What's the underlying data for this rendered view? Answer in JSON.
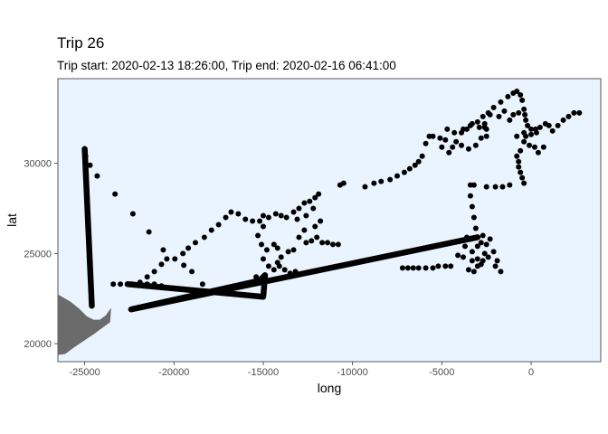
{
  "chart_data": {
    "type": "scatter",
    "title": "Trip 26",
    "subtitle": "Trip start: 2020-02-13 18:26:00, Trip end: 2020-02-16 06:41:00",
    "xlabel": "long",
    "ylabel": "lat",
    "xlim": [
      -26500,
      3900
    ],
    "ylim": [
      19000,
      34700
    ],
    "x_ticks": [
      -25000,
      -20000,
      -15000,
      -10000,
      -5000,
      0
    ],
    "x_tick_labels": [
      "-25000",
      "-20000",
      "-15000",
      "-10000",
      "-5000",
      "0"
    ],
    "y_ticks": [
      20000,
      25000,
      30000
    ],
    "y_tick_labels": [
      "20000",
      "25000",
      "30000"
    ],
    "grid": false,
    "panel_background": "#eaf4ff",
    "land_color": "#6b6b6b",
    "point_color": "#000000",
    "land_outline": [
      [
        -26500,
        22700
      ],
      [
        -25800,
        22300
      ],
      [
        -25300,
        21900
      ],
      [
        -24900,
        21500
      ],
      [
        -24500,
        21300
      ],
      [
        -24150,
        21300
      ],
      [
        -23800,
        21550
      ],
      [
        -23550,
        21900
      ],
      [
        -23600,
        21200
      ],
      [
        -23950,
        20950
      ],
      [
        -24500,
        20550
      ],
      [
        -25100,
        20150
      ],
      [
        -25700,
        19750
      ],
      [
        -26100,
        19450
      ],
      [
        -26500,
        19400
      ]
    ],
    "dense_tracks": [
      [
        [
          -25000,
          30800
        ],
        [
          -24600,
          22100
        ]
      ],
      [
        [
          -22600,
          23300
        ],
        [
          -15000,
          22600
        ],
        [
          -14900,
          23800
        ],
        [
          -15200,
          23500
        ],
        [
          -22400,
          21900
        ],
        [
          -3000,
          25900
        ]
      ]
    ],
    "points": [
      [
        -24950,
        30400
      ],
      [
        -24700,
        29900
      ],
      [
        -24300,
        29300
      ],
      [
        -23300,
        28300
      ],
      [
        -22300,
        27200
      ],
      [
        -21400,
        26200
      ],
      [
        -20600,
        25200
      ],
      [
        -19950,
        24700
      ],
      [
        -19450,
        24350
      ],
      [
        -19000,
        24000
      ],
      [
        -20400,
        24700
      ],
      [
        -20700,
        24400
      ],
      [
        -21100,
        24000
      ],
      [
        -21500,
        23700
      ],
      [
        -21900,
        23400
      ],
      [
        -22350,
        23300
      ],
      [
        -19500,
        25000
      ],
      [
        -19200,
        25300
      ],
      [
        -18800,
        25600
      ],
      [
        -18300,
        25900
      ],
      [
        -17900,
        26300
      ],
      [
        -17500,
        26600
      ],
      [
        -17100,
        27000
      ],
      [
        -16800,
        27300
      ],
      [
        -16400,
        27200
      ],
      [
        -16000,
        26900
      ],
      [
        -15600,
        26800
      ],
      [
        -15200,
        26800
      ],
      [
        -15000,
        26500
      ],
      [
        -15300,
        26000
      ],
      [
        -15100,
        25500
      ],
      [
        -14800,
        25200
      ],
      [
        -15000,
        27100
      ],
      [
        -14700,
        27000
      ],
      [
        -14300,
        27200
      ],
      [
        -14000,
        27100
      ],
      [
        -13700,
        27000
      ],
      [
        -13300,
        27300
      ],
      [
        -13000,
        27500
      ],
      [
        -12700,
        27800
      ],
      [
        -12400,
        27900
      ],
      [
        -12100,
        28100
      ],
      [
        -11900,
        28300
      ],
      [
        -12200,
        27500
      ],
      [
        -12600,
        27100
      ],
      [
        -13100,
        26900
      ],
      [
        -14400,
        25500
      ],
      [
        -14200,
        25300
      ],
      [
        -14000,
        24800
      ],
      [
        -14100,
        24300
      ],
      [
        -14400,
        24100
      ],
      [
        -13800,
        24100
      ],
      [
        -13500,
        23900
      ],
      [
        -13200,
        24000
      ],
      [
        -13600,
        25100
      ],
      [
        -13300,
        25200
      ],
      [
        -13000,
        25900
      ],
      [
        -12700,
        26300
      ],
      [
        -12600,
        25600
      ],
      [
        -12300,
        25700
      ],
      [
        -12000,
        25900
      ],
      [
        -11700,
        25600
      ],
      [
        -11400,
        25600
      ],
      [
        -11100,
        25500
      ],
      [
        -10800,
        25500
      ],
      [
        -14700,
        24300
      ],
      [
        -15400,
        23700
      ],
      [
        -15000,
        24700
      ],
      [
        -14200,
        24500
      ],
      [
        -12100,
        26500
      ],
      [
        -11800,
        26800
      ],
      [
        -10700,
        28800
      ],
      [
        -10500,
        28900
      ],
      [
        -9300,
        28700
      ],
      [
        -8800,
        28900
      ],
      [
        -8400,
        29000
      ],
      [
        -7900,
        29100
      ],
      [
        -7500,
        29300
      ],
      [
        -7100,
        29500
      ],
      [
        -6800,
        29700
      ],
      [
        -6500,
        29900
      ],
      [
        -6300,
        30100
      ],
      [
        -6100,
        30400
      ],
      [
        -5900,
        31100
      ],
      [
        -5700,
        31500
      ],
      [
        -5500,
        31500
      ],
      [
        -5100,
        31400
      ],
      [
        -4800,
        31300
      ],
      [
        -4400,
        30900
      ],
      [
        -4700,
        31900
      ],
      [
        -4300,
        31700
      ],
      [
        -3900,
        31700
      ],
      [
        -3600,
        31900
      ],
      [
        -3400,
        32100
      ],
      [
        -3000,
        32300
      ],
      [
        -2700,
        32600
      ],
      [
        -2400,
        32800
      ],
      [
        -2100,
        33100
      ],
      [
        -1700,
        33400
      ],
      [
        -1300,
        33700
      ],
      [
        -1000,
        33900
      ],
      [
        -800,
        34000
      ],
      [
        -600,
        33800
      ],
      [
        -500,
        33500
      ],
      [
        -400,
        33000
      ],
      [
        -350,
        32700
      ],
      [
        -300,
        32400
      ],
      [
        -200,
        32100
      ],
      [
        0,
        31900
      ],
      [
        250,
        31900
      ],
      [
        500,
        32000
      ],
      [
        800,
        32200
      ],
      [
        1000,
        32100
      ],
      [
        1200,
        31800
      ],
      [
        1500,
        32100
      ],
      [
        1800,
        32400
      ],
      [
        2100,
        32600
      ],
      [
        2400,
        32800
      ],
      [
        2700,
        32800
      ],
      [
        -3800,
        31900
      ],
      [
        -3300,
        32200
      ],
      [
        -2900,
        32000
      ],
      [
        -2500,
        31900
      ],
      [
        -2600,
        32200
      ],
      [
        -2300,
        32700
      ],
      [
        -4200,
        31200
      ],
      [
        -3900,
        31000
      ],
      [
        -3500,
        30800
      ],
      [
        -3100,
        31000
      ],
      [
        -2800,
        31400
      ],
      [
        -2500,
        31500
      ],
      [
        -4600,
        30600
      ],
      [
        -5000,
        30900
      ],
      [
        -2600,
        32000
      ],
      [
        -300,
        31500
      ],
      [
        -400,
        31200
      ],
      [
        -100,
        31000
      ],
      [
        200,
        30900
      ],
      [
        400,
        30600
      ],
      [
        700,
        30900
      ],
      [
        -600,
        30700
      ],
      [
        -800,
        30400
      ],
      [
        -700,
        30100
      ],
      [
        -700,
        29800
      ],
      [
        -600,
        29500
      ],
      [
        -500,
        29200
      ],
      [
        -400,
        28900
      ],
      [
        -1200,
        28800
      ],
      [
        -1600,
        28700
      ],
      [
        -2000,
        28700
      ],
      [
        -2500,
        28700
      ],
      [
        -3200,
        28800
      ],
      [
        -3400,
        28800
      ],
      [
        -3400,
        28200
      ],
      [
        -3300,
        27600
      ],
      [
        -3200,
        27000
      ],
      [
        -3100,
        26400
      ],
      [
        0,
        31600
      ],
      [
        300,
        31700
      ],
      [
        -1200,
        32400
      ],
      [
        -1000,
        32700
      ],
      [
        -700,
        32800
      ],
      [
        -1800,
        32600
      ],
      [
        -1500,
        32900
      ],
      [
        -400,
        31700
      ],
      [
        -800,
        31500
      ],
      [
        -2800,
        24400
      ],
      [
        -3000,
        24700
      ],
      [
        -3300,
        25100
      ],
      [
        -3700,
        25400
      ],
      [
        -3500,
        24100
      ],
      [
        -3200,
        24000
      ],
      [
        -3000,
        24300
      ],
      [
        -2700,
        24600
      ],
      [
        -2400,
        24800
      ],
      [
        -2100,
        25100
      ],
      [
        -2000,
        24300
      ],
      [
        -1700,
        24000
      ],
      [
        -1900,
        24600
      ],
      [
        -2500,
        25500
      ],
      [
        -2300,
        25800
      ],
      [
        -2700,
        26000
      ],
      [
        -3600,
        25900
      ],
      [
        -2800,
        25600
      ],
      [
        -3300,
        24600
      ],
      [
        -3800,
        24800
      ],
      [
        -4100,
        24900
      ],
      [
        -2600,
        25000
      ],
      [
        -3000,
        25400
      ],
      [
        -6900,
        24200
      ],
      [
        -6600,
        24200
      ],
      [
        -6300,
        24200
      ],
      [
        -5900,
        24200
      ],
      [
        -5500,
        24200
      ],
      [
        -5200,
        24300
      ],
      [
        -4800,
        24300
      ],
      [
        -4500,
        24300
      ],
      [
        -7200,
        24200
      ],
      [
        -23400,
        23300
      ],
      [
        -23000,
        23300
      ],
      [
        -21500,
        23300
      ],
      [
        -21100,
        23300
      ],
      [
        -20700,
        23200
      ],
      [
        -18400,
        23300
      ]
    ]
  }
}
